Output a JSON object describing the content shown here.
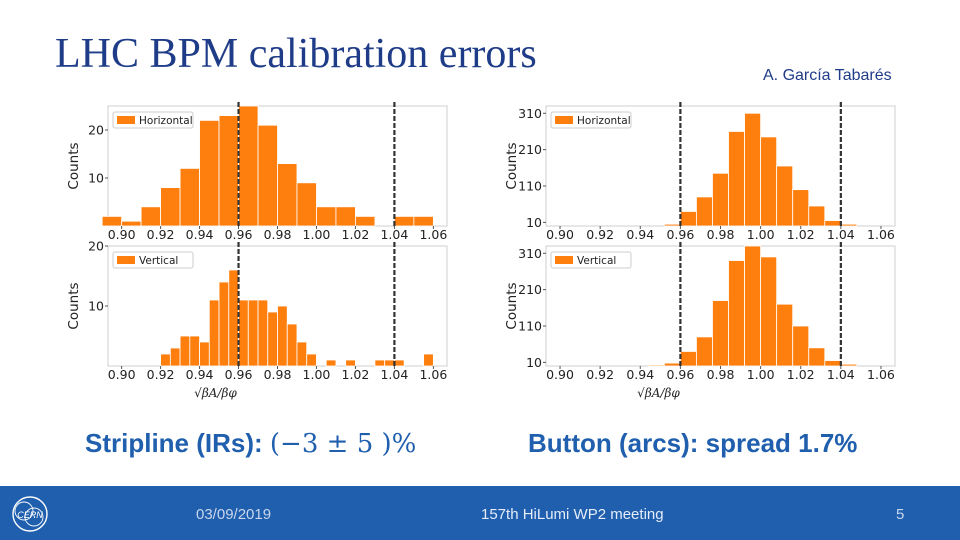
{
  "slide": {
    "title": "LHC BPM calibration errors",
    "author": "A. García Tabarés",
    "stripline_label": "Stripline (IRs):",
    "stripline_formula": "(−3 ± 5 )%",
    "button_label": "Button (arcs): spread 1.7%"
  },
  "footer": {
    "date": "03/09/2019",
    "meeting": "157th HiLumi WP2 meeting",
    "page": "5",
    "logo_text": "CERN"
  },
  "colors": {
    "bar": "#ff7f0e",
    "bar_edge": "#ffffff",
    "dashed_line": "#333333",
    "footer": "#1f5fae",
    "title": "#1f3c88",
    "highlight": "#1f5fae"
  },
  "chart_data": [
    {
      "type": "bar",
      "panel": "stripline-horizontal",
      "legend": "Horizontal",
      "legend_position": "top-left",
      "ylabel": "Counts",
      "yticks": [
        10,
        20
      ],
      "ylim": [
        0,
        25
      ],
      "xlim": [
        0.893,
        1.067
      ],
      "xticks": [
        "0.90",
        "0.92",
        "0.94",
        "0.96",
        "0.98",
        "1.00",
        "1.02",
        "1.04",
        "1.06"
      ],
      "bin_width": 0.01,
      "bins": [
        [
          0.895,
          2
        ],
        [
          0.905,
          1
        ],
        [
          0.915,
          4
        ],
        [
          0.925,
          8
        ],
        [
          0.935,
          12
        ],
        [
          0.945,
          22
        ],
        [
          0.955,
          23
        ],
        [
          0.965,
          25
        ],
        [
          0.975,
          21
        ],
        [
          0.985,
          13
        ],
        [
          0.995,
          9
        ],
        [
          1.005,
          4
        ],
        [
          1.015,
          4
        ],
        [
          1.025,
          2
        ],
        [
          1.035,
          0
        ],
        [
          1.045,
          2
        ],
        [
          1.055,
          2
        ]
      ],
      "vlines": [
        0.96,
        1.04
      ]
    },
    {
      "type": "bar",
      "panel": "stripline-vertical",
      "legend": "Vertical",
      "legend_position": "top-left",
      "ylabel": "Counts",
      "xlabel": "√βA/βφ",
      "yticks": [
        10,
        20
      ],
      "ylim": [
        0,
        20
      ],
      "xlim": [
        0.893,
        1.067
      ],
      "xticks": [
        "0.90",
        "0.92",
        "0.94",
        "0.96",
        "0.98",
        "1.00",
        "1.02",
        "1.04",
        "1.06"
      ],
      "bin_width": 0.005,
      "bins": [
        [
          0.9225,
          2
        ],
        [
          0.9275,
          3
        ],
        [
          0.9325,
          5
        ],
        [
          0.9375,
          5
        ],
        [
          0.9425,
          4
        ],
        [
          0.9475,
          11
        ],
        [
          0.9525,
          14
        ],
        [
          0.9575,
          16
        ],
        [
          0.9625,
          11
        ],
        [
          0.9675,
          11
        ],
        [
          0.9725,
          11
        ],
        [
          0.9775,
          9
        ],
        [
          0.9825,
          10
        ],
        [
          0.9875,
          7
        ],
        [
          0.9925,
          4
        ],
        [
          0.9975,
          2
        ],
        [
          1.0075,
          1
        ],
        [
          1.0175,
          1
        ],
        [
          1.0325,
          1
        ],
        [
          1.0375,
          1
        ],
        [
          1.0425,
          1
        ],
        [
          1.0575,
          2
        ]
      ],
      "vlines": [
        0.96,
        1.04
      ]
    },
    {
      "type": "bar",
      "panel": "button-horizontal",
      "legend": "Horizontal",
      "legend_position": "top-left",
      "ylabel": "Counts",
      "yticks": [
        10,
        110,
        210,
        310
      ],
      "ylim": [
        0,
        330
      ],
      "xlim": [
        0.893,
        1.067
      ],
      "xticks": [
        "0.90",
        "0.92",
        "0.94",
        "0.96",
        "0.98",
        "1.00",
        "1.02",
        "1.04",
        "1.06"
      ],
      "bin_width": 0.008,
      "bins": [
        [
          0.956,
          5
        ],
        [
          0.964,
          40
        ],
        [
          0.972,
          80
        ],
        [
          0.98,
          145
        ],
        [
          0.988,
          260
        ],
        [
          0.996,
          310
        ],
        [
          1.004,
          245
        ],
        [
          1.012,
          165
        ],
        [
          1.02,
          100
        ],
        [
          1.028,
          55
        ],
        [
          1.036,
          15
        ],
        [
          1.044,
          5
        ]
      ],
      "vlines": [
        0.96,
        1.04
      ]
    },
    {
      "type": "bar",
      "panel": "button-vertical",
      "legend": "Vertical",
      "legend_position": "top-left",
      "ylabel": "Counts",
      "xlabel": "√βA/βφ",
      "yticks": [
        10,
        110,
        210,
        310
      ],
      "ylim": [
        0,
        330
      ],
      "xlim": [
        0.893,
        1.067
      ],
      "xticks": [
        "0.90",
        "0.92",
        "0.94",
        "0.96",
        "0.98",
        "1.00",
        "1.02",
        "1.04",
        "1.06"
      ],
      "bin_width": 0.008,
      "bins": [
        [
          0.948,
          3
        ],
        [
          0.956,
          8
        ],
        [
          0.964,
          40
        ],
        [
          0.972,
          80
        ],
        [
          0.98,
          180
        ],
        [
          0.988,
          290
        ],
        [
          0.996,
          330
        ],
        [
          1.004,
          300
        ],
        [
          1.012,
          170
        ],
        [
          1.02,
          110
        ],
        [
          1.028,
          50
        ],
        [
          1.036,
          15
        ],
        [
          1.044,
          5
        ]
      ],
      "vlines": [
        0.96,
        1.04
      ]
    }
  ]
}
